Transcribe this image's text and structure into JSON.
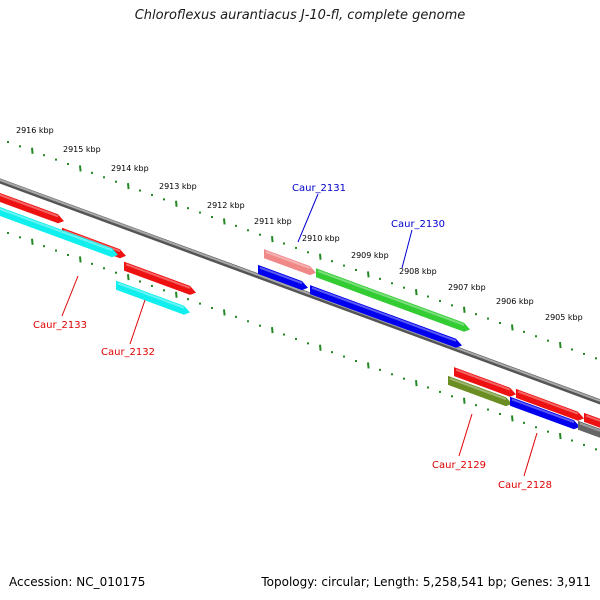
{
  "title": "Chloroflexus aurantiacus J-10-fl, complete genome",
  "accession_text": "Accession: NC_010175",
  "stats_text": "Topology: circular; Length: 5,258,541 bp; Genes: 3,911",
  "kbp_labels": [
    "2916 kbp",
    "2915 kbp",
    "2914 kbp",
    "2913 kbp",
    "2912 kbp",
    "2911 kbp",
    "2910 kbp",
    "2909 kbp",
    "2908 kbp",
    "2907 kbp",
    "2906 kbp",
    "2905 kbp"
  ],
  "colors": {
    "backbone": "#777777",
    "ticks": "#228822",
    "red_gene": "#ee1111",
    "pink_gene": "#f08888",
    "green_gene": "#33cc33",
    "olive_gene": "#6b8e23",
    "blue_gene": "#0000ee",
    "cyan_gene": "#11eeee",
    "grey_gene": "#666666",
    "label_blue": "#0000cc",
    "label_red": "#dd0000"
  },
  "gene_labels": [
    {
      "name": "Caur_2131",
      "color": "label_blue"
    },
    {
      "name": "Caur_2130",
      "color": "label_blue"
    },
    {
      "name": "Caur_2133",
      "color": "label_red"
    },
    {
      "name": "Caur_2132",
      "color": "label_red"
    },
    {
      "name": "Caur_2129",
      "color": "label_red"
    },
    {
      "name": "Caur_2128",
      "color": "label_red"
    }
  ]
}
